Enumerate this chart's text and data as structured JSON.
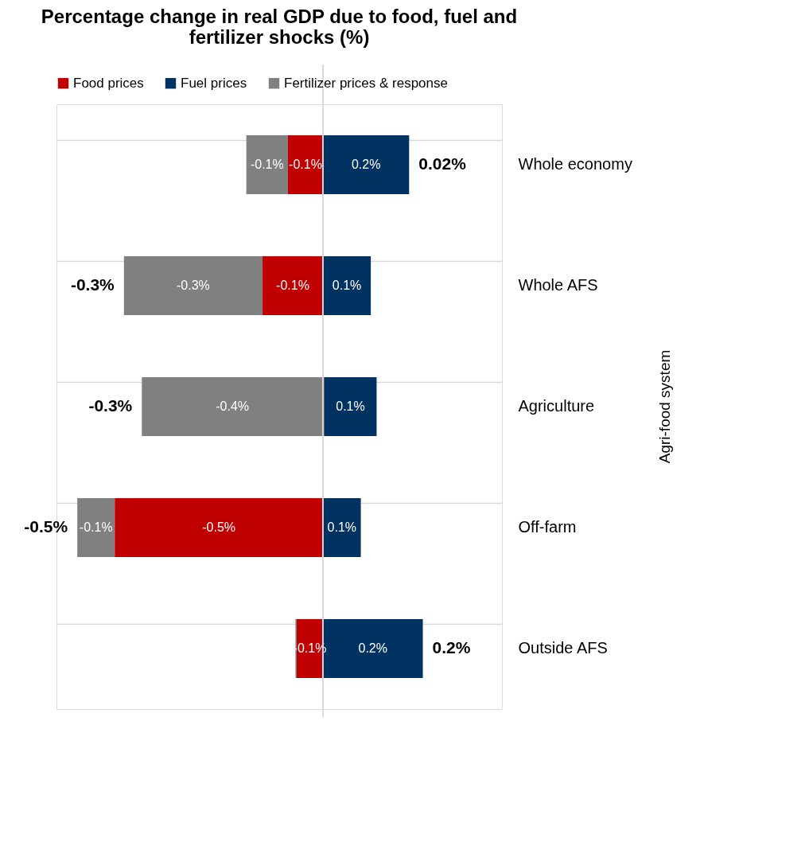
{
  "chart_data": {
    "type": "bar",
    "orientation": "horizontal",
    "stacked": true,
    "title": "Percentage change in real GDP due to food, fuel and fertilizer shocks (%)",
    "categories": [
      "Whole economy",
      "Whole AFS",
      "Agriculture",
      "Off-farm",
      "Outside AFS"
    ],
    "series": [
      {
        "name": "Food prices",
        "color": "#c00000",
        "values": [
          -0.084,
          -0.145,
          0.003,
          -0.5,
          -0.063
        ],
        "value_labels": [
          "-0.1%",
          "-0.1%",
          null,
          "-0.5%",
          "-0.1%"
        ]
      },
      {
        "name": "Fuel prices",
        "color": "#003361",
        "values": [
          0.207,
          0.115,
          0.126,
          0.091,
          0.24
        ],
        "value_labels": [
          "0.2%",
          "0.1%",
          "0.1%",
          "0.1%",
          "0.2%"
        ]
      },
      {
        "name": "Fertilizer prices & response",
        "color": "#808080",
        "values": [
          -0.1,
          -0.333,
          -0.435,
          -0.09,
          -0.003
        ],
        "value_labels": [
          "-0.1%",
          "-0.3%",
          "-0.4%",
          "-0.1%",
          null
        ]
      }
    ],
    "totals": [
      "0.02%",
      "-0.3%",
      "-0.3%",
      "-0.5%",
      "0.2%"
    ],
    "xlim": [
      -0.64,
      0.43
    ],
    "ref_lines": [
      {
        "axis": "x",
        "value": 0,
        "color": "#d9d9d9"
      }
    ],
    "annotations": [
      "Agri-food system"
    ],
    "grid": "y",
    "legend": "top"
  }
}
